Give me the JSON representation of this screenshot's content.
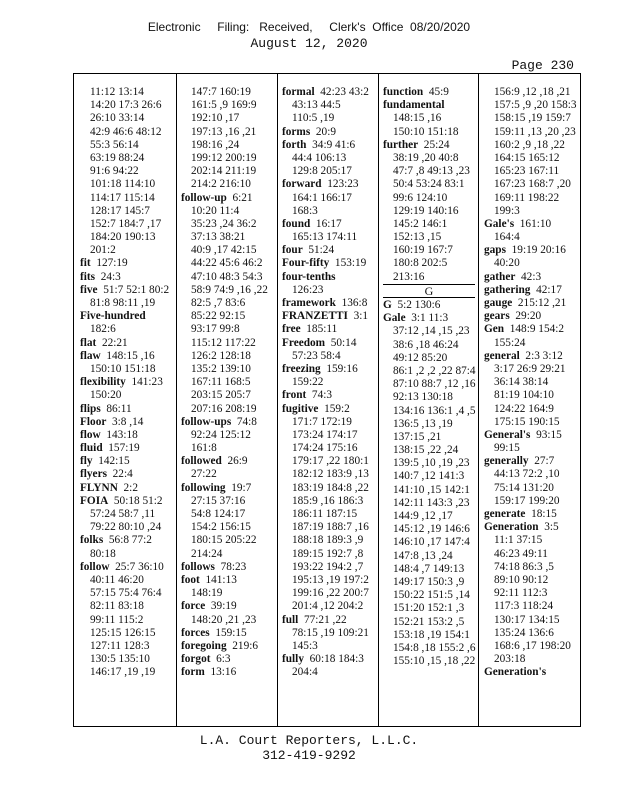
{
  "header": {
    "filing": "Electronic     Filing:   Received,     Clerk's  Office  08/20/2020",
    "date": "August 12, 2020",
    "page": "Page 230"
  },
  "columns": [
    {
      "lines": [
        "11:12 13:14",
        "14:20 17:3 26:6",
        "26:10 33:14",
        "42:9 46:6 48:12",
        "55:3 56:14",
        "63:19 88:24",
        "91:6 94:22",
        "101:18 114:10",
        "114:17 115:14",
        "128:17 145:7",
        "152:7 184:7 ,17",
        "184:20 190:13",
        "201:2",
        {
          "term": "fit",
          "refs": "127:19"
        },
        {
          "term": "fits",
          "refs": "24:3"
        },
        {
          "term": "five",
          "refs": "51:7 52:1 80:2"
        },
        "81:8 98:11 ,19",
        {
          "term": "Five-hundred"
        },
        "182:6",
        {
          "term": "flat",
          "refs": "22:21"
        },
        {
          "term": "flaw",
          "refs": "148:15 ,16"
        },
        "150:10 151:18",
        {
          "term": "flexibility",
          "refs": "141:23"
        },
        "150:20",
        {
          "term": "flips",
          "refs": "86:11"
        },
        {
          "term": "Floor",
          "refs": "3:8 ,14"
        },
        {
          "term": "flow",
          "refs": "143:18"
        },
        {
          "term": "fluid",
          "refs": "157:19"
        },
        {
          "term": "fly",
          "refs": "142:15"
        },
        {
          "term": "flyers",
          "refs": "22:4"
        },
        {
          "term": "FLYNN",
          "refs": "2:2"
        },
        {
          "term": "FOIA",
          "refs": "50:18 51:2"
        },
        "57:24 58:7 ,11",
        "79:22 80:10 ,24",
        {
          "term": "folks",
          "refs": "56:8 77:2"
        },
        "80:18",
        {
          "term": "follow",
          "refs": "25:7 36:10"
        },
        "40:11 46:20",
        "57:15 75:4 76:4",
        "82:11 83:18",
        "99:11 115:2",
        "125:15 126:15",
        "127:11 128:3",
        "130:5 135:10",
        "146:17 ,19 ,19"
      ]
    },
    {
      "lines": [
        "147:7 160:19",
        "161:5 ,9 169:9",
        "192:10 ,17",
        "197:13 ,16 ,21",
        "198:16 ,24",
        "199:12 200:19",
        "202:14 211:19",
        "214:2 216:10",
        {
          "term": "follow-up",
          "refs": "6:21"
        },
        "10:20 11:4",
        "35:23 ,24 36:2",
        "37:13 38:21",
        "40:9 ,17 42:15",
        "44:22 45:6 46:2",
        "47:10 48:3 54:3",
        "58:9 74:9 ,16 ,22",
        "82:5 ,7 83:6",
        "85:22 92:15",
        "93:17 99:8",
        "115:12 117:22",
        "126:2 128:18",
        "135:2 139:10",
        "167:11 168:5",
        "203:15 205:7",
        "207:16 208:19",
        {
          "term": "follow-ups",
          "refs": "74:8"
        },
        "92:24 125:12",
        "161:8",
        {
          "term": "followed",
          "refs": "26:9"
        },
        "27:22",
        {
          "term": "following",
          "refs": "19:7"
        },
        "27:15 37:16",
        "54:8 124:17",
        "154:2 156:15",
        "180:15 205:22",
        "214:24",
        {
          "term": "follows",
          "refs": "78:23"
        },
        {
          "term": "foot",
          "refs": "141:13"
        },
        "148:19",
        {
          "term": "force",
          "refs": "39:19"
        },
        "148:20 ,21 ,23",
        {
          "term": "forces",
          "refs": "159:15"
        },
        {
          "term": "foregoing",
          "refs": "219:6"
        },
        {
          "term": "forgot",
          "refs": "6:3"
        },
        {
          "term": "form",
          "refs": "13:16"
        }
      ]
    },
    {
      "lines": [
        {
          "term": "formal",
          "refs": "42:23 43:2"
        },
        "43:13 44:5",
        "110:5 ,19",
        {
          "term": "forms",
          "refs": "20:9"
        },
        {
          "term": "forth",
          "refs": "34:9 41:6"
        },
        "44:4 106:13",
        "129:8 205:17",
        {
          "term": "forward",
          "refs": "123:23"
        },
        "164:1 166:17",
        "168:3",
        {
          "term": "found",
          "refs": "16:17"
        },
        "165:13 174:11",
        {
          "term": "four",
          "refs": "51:24"
        },
        {
          "term": "Four-fifty",
          "refs": "153:19"
        },
        {
          "term": "four-tenths"
        },
        "126:23",
        {
          "term": "framework",
          "refs": "136:8"
        },
        {
          "term": "FRANZETTI",
          "refs": "3:1"
        },
        {
          "term": "free",
          "refs": "185:11"
        },
        {
          "term": "Freedom",
          "refs": "50:14"
        },
        "57:23 58:4",
        {
          "term": "freezing",
          "refs": "159:16"
        },
        "159:22",
        {
          "term": "front",
          "refs": "74:3"
        },
        {
          "term": "fugitive",
          "refs": "159:2"
        },
        "171:7 172:19",
        "173:24 174:17",
        "174:24 175:16",
        "179:17 ,22 180:1",
        "182:12 183:9 ,13",
        "183:19 184:8 ,22",
        "185:9 ,16 186:3",
        "186:11 187:15",
        "187:19 188:7 ,16",
        "188:18 189:3 ,9",
        "189:15 192:7 ,8",
        "193:22 194:2 ,7",
        "195:13 ,19 197:2",
        "199:16 ,22 200:7",
        "201:4 ,12 204:2",
        {
          "term": "full",
          "refs": "77:21 ,22"
        },
        "78:15 ,19 109:21",
        "145:3",
        {
          "term": "fully",
          "refs": "60:18 184:3"
        },
        "204:4"
      ]
    },
    {
      "lines": [
        {
          "term": "function",
          "refs": "45:9"
        },
        {
          "term": "fundamental"
        },
        "148:15 ,16",
        "150:10 151:18",
        {
          "term": "further",
          "refs": "25:24"
        },
        "38:19 ,20 40:8",
        "47:7 ,8 49:13 ,23",
        "50:4 53:24 83:1",
        "99:6 124:10",
        "129:19 140:16",
        "145:2 146:1",
        "152:13 ,15",
        "160:19 167:7",
        "180:8 202:5",
        "213:16",
        {
          "heading": "G"
        },
        {
          "term": "G",
          "refs": "5:2 130:6"
        },
        {
          "term": "Gale",
          "refs": "3:1 11:3"
        },
        "37:12 ,14 ,15 ,23",
        "38:6 ,18 46:24",
        "49:12 85:20",
        "86:1 ,2 ,2 ,22 87:4",
        "87:10 88:7 ,12 ,16",
        "92:13 130:18",
        "134:16 136:1 ,4 ,5",
        "136:5 ,13 ,19",
        "137:15 ,21",
        "138:15 ,22 ,24",
        "139:5 ,10 ,19 ,23",
        "140:7 ,12 141:3",
        "141:10 ,15 142:1",
        "142:11 143:3 ,23",
        "144:9 ,12 ,17",
        "145:12 ,19 146:6",
        "146:10 ,17 147:4",
        "147:8 ,13 ,24",
        "148:4 ,7 149:13",
        "149:17 150:3 ,9",
        "150:22 151:5 ,14",
        "151:20 152:1 ,3",
        "152:21 153:2 ,5",
        "153:18 ,19 154:1",
        "154:8 ,18 155:2 ,6",
        "155:10 ,15 ,18 ,22"
      ]
    },
    {
      "lines": [
        "156:9 ,12 ,18 ,21",
        "157:5 ,9 ,20 158:3",
        "158:15 ,19 159:7",
        "159:11 ,13 ,20 ,23",
        "160:2 ,9 ,18 ,22",
        "164:15 165:12",
        "165:23 167:11",
        "167:23 168:7 ,20",
        "169:11 198:22",
        "199:3",
        {
          "term": "Gale's",
          "refs": "161:10"
        },
        "164:4",
        {
          "term": "gaps",
          "refs": "19:19 20:16"
        },
        "40:20",
        {
          "term": "gather",
          "refs": "42:3"
        },
        {
          "term": "gathering",
          "refs": "42:17"
        },
        {
          "term": "gauge",
          "refs": "215:12 ,21"
        },
        {
          "term": "gears",
          "refs": "29:20"
        },
        {
          "term": "Gen",
          "refs": "148:9 154:2"
        },
        "155:24",
        {
          "term": "general",
          "refs": "2:3 3:12"
        },
        "3:17 26:9 29:21",
        "36:14 38:14",
        "81:19 104:10",
        "124:22 164:9",
        "175:15 190:15",
        {
          "term": "General's",
          "refs": "93:15"
        },
        "99:15",
        {
          "term": "generally",
          "refs": "27:7"
        },
        "44:13 72:2 ,10",
        "75:14 131:20",
        "159:17 199:20",
        {
          "term": "generate",
          "refs": "18:15"
        },
        {
          "term": "Generation",
          "refs": "3:5"
        },
        "11:1 37:15",
        "46:23 49:11",
        "74:18 86:3 ,5",
        "89:10 90:12",
        "92:11 112:3",
        "117:3 118:24",
        "130:17 134:15",
        "135:24 136:6",
        "168:6 ,17 198:20",
        "203:18",
        {
          "term": "Generation's"
        }
      ]
    }
  ],
  "footer": {
    "company": "L.A. Court Reporters, L.L.C.",
    "phone": "312-419-9292"
  }
}
